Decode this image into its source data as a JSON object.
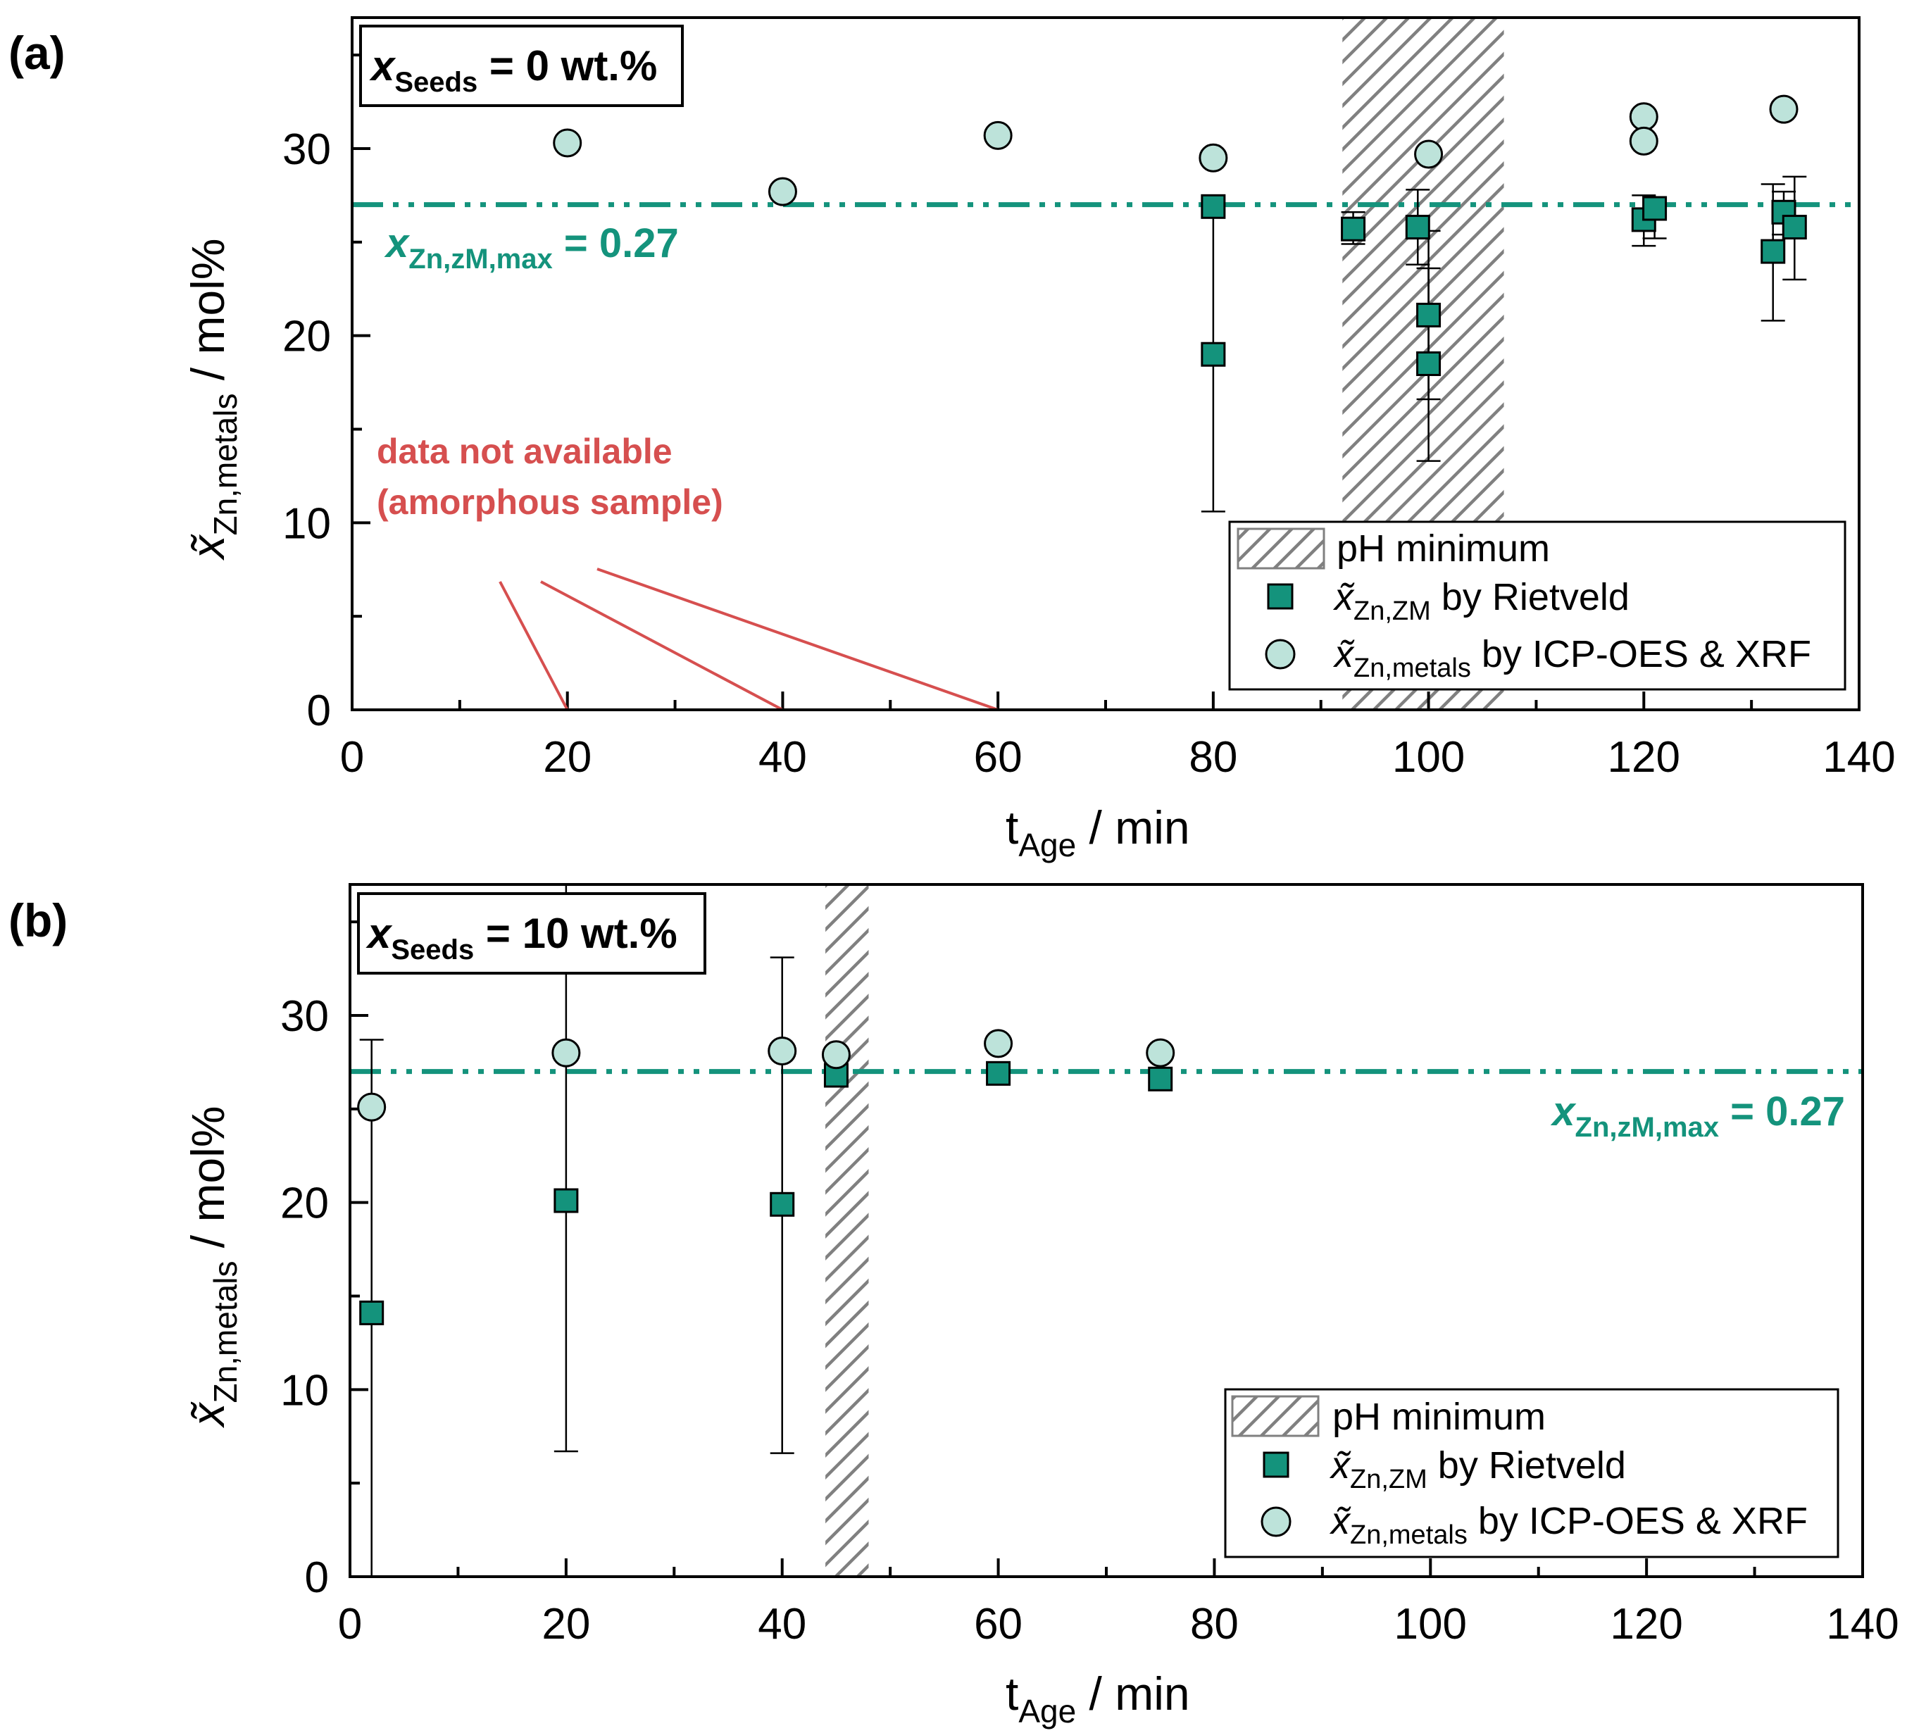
{
  "chart_data": [
    {
      "panel": "(a)",
      "type": "scatter",
      "seeds_label": {
        "var": "x",
        "sub": "Seeds",
        "value": " = 0 wt.%"
      },
      "xlabel": {
        "main": "t",
        "sub": "Age",
        "unit": " / min"
      },
      "ylabel": {
        "var": "x̃",
        "sub": "Zn,metals",
        "unit": " / mol%"
      },
      "xlim": [
        0,
        140
      ],
      "ylim": [
        0,
        37
      ],
      "xticks": [
        0,
        20,
        40,
        60,
        80,
        100,
        120,
        140
      ],
      "yticks": [
        0,
        10,
        20,
        30
      ],
      "xtick_labels": [
        "0",
        "20",
        "40",
        "60",
        "80",
        "100",
        "120",
        "140"
      ],
      "ytick_labels": [
        "0",
        "10",
        "20",
        "30"
      ],
      "highlight_xticks": [
        "20",
        "40",
        "60"
      ],
      "max_line": {
        "y": 27,
        "var": "x",
        "sub": "Zn,zM,max",
        "value": " = 0.27",
        "color": "#14937c"
      },
      "ph_minimum": {
        "x_start": 92,
        "x_end": 107
      },
      "annotation": {
        "line1": "data not available",
        "line2": "(amorphous sample)",
        "color": "#d64f4f",
        "points_to_x": [
          20,
          40,
          60
        ]
      },
      "series": [
        {
          "name": "Rietveld",
          "marker": "square",
          "color": "#14937c",
          "points": [
            {
              "x": 80,
              "y": 26.9,
              "ylo": 10.6,
              "yhi": 26.9
            },
            {
              "x": 80,
              "y": 19.0
            },
            {
              "x": 93,
              "y": 25.7,
              "ylo": 24.9,
              "yhi": 26.6
            },
            {
              "x": 99,
              "y": 25.8,
              "ylo": 23.8,
              "yhi": 27.8
            },
            {
              "x": 100,
              "y": 21.1,
              "ylo": 16.6,
              "yhi": 25.6
            },
            {
              "x": 100,
              "y": 18.5,
              "ylo": 13.3,
              "yhi": 23.6
            },
            {
              "x": 120,
              "y": 26.2,
              "ylo": 24.8,
              "yhi": 27.5
            },
            {
              "x": 121,
              "y": 26.8,
              "ylo": 25.2,
              "yhi": 27.2
            },
            {
              "x": 132,
              "y": 24.5,
              "ylo": 20.8,
              "yhi": 28.1
            },
            {
              "x": 133,
              "y": 26.6,
              "ylo": 25.4,
              "yhi": 27.7
            },
            {
              "x": 134,
              "y": 25.8,
              "ylo": 23.0,
              "yhi": 28.5
            }
          ]
        },
        {
          "name": "ICP-OES & XRF",
          "marker": "circle",
          "color": "#bde3da",
          "points": [
            {
              "x": 20,
              "y": 30.3
            },
            {
              "x": 40,
              "y": 27.7
            },
            {
              "x": 60,
              "y": 30.7
            },
            {
              "x": 80,
              "y": 29.5
            },
            {
              "x": 100,
              "y": 29.7
            },
            {
              "x": 120,
              "y": 31.7
            },
            {
              "x": 120,
              "y": 30.4
            },
            {
              "x": 133,
              "y": 32.1
            }
          ]
        }
      ],
      "legend": {
        "position": "bottom-right",
        "items": [
          {
            "marker": "hatch",
            "label": "pH minimum"
          },
          {
            "marker": "square",
            "var": "x̃",
            "sub": "Zn,ZM",
            "label": " by Rietveld"
          },
          {
            "marker": "circle",
            "var": "x̃",
            "sub": "Zn,metals",
            "label": " by ICP-OES & XRF"
          }
        ]
      }
    },
    {
      "panel": "(b)",
      "type": "scatter",
      "seeds_label": {
        "var": "x",
        "sub": "Seeds",
        "value": " = 10 wt.%"
      },
      "xlabel": {
        "main": "t",
        "sub": "Age",
        "unit": " / min"
      },
      "ylabel": {
        "var": "x̃",
        "sub": "Zn,metals",
        "unit": " / mol%"
      },
      "xlim": [
        0,
        140
      ],
      "ylim": [
        0,
        37
      ],
      "xticks": [
        0,
        20,
        40,
        60,
        80,
        100,
        120,
        140
      ],
      "yticks": [
        0,
        10,
        20,
        30
      ],
      "xtick_labels": [
        "0",
        "20",
        "40",
        "60",
        "80",
        "100",
        "120",
        "140"
      ],
      "ytick_labels": [
        "0",
        "10",
        "20",
        "30"
      ],
      "highlight_xticks": [],
      "max_line": {
        "y": 27,
        "var": "x",
        "sub": "Zn,zM,max",
        "value": " = 0.27",
        "color": "#14937c"
      },
      "ph_minimum": {
        "x_start": 44,
        "x_end": 48
      },
      "series": [
        {
          "name": "Rietveld",
          "marker": "square",
          "color": "#14937c",
          "points": [
            {
              "x": 2,
              "y": 14.1,
              "ylo": 0,
              "yhi": 28.7
            },
            {
              "x": 20,
              "y": 20.1,
              "ylo": 6.7,
              "yhi": 37
            },
            {
              "x": 40,
              "y": 19.9,
              "ylo": 6.6,
              "yhi": 33.1
            },
            {
              "x": 45,
              "y": 26.8
            },
            {
              "x": 60,
              "y": 26.9
            },
            {
              "x": 75,
              "y": 26.6
            }
          ]
        },
        {
          "name": "ICP-OES & XRF",
          "marker": "circle",
          "color": "#bde3da",
          "points": [
            {
              "x": 2,
              "y": 25.1
            },
            {
              "x": 20,
              "y": 28.0
            },
            {
              "x": 40,
              "y": 28.1
            },
            {
              "x": 45,
              "y": 27.9
            },
            {
              "x": 60,
              "y": 28.5
            },
            {
              "x": 75,
              "y": 28.0
            }
          ]
        }
      ],
      "legend": {
        "position": "bottom-right",
        "items": [
          {
            "marker": "hatch",
            "label": "pH minimum"
          },
          {
            "marker": "square",
            "var": "x̃",
            "sub": "Zn,ZM",
            "label": " by Rietveld"
          },
          {
            "marker": "circle",
            "var": "x̃",
            "sub": "Zn,metals",
            "label": " by ICP-OES & XRF"
          }
        ]
      }
    }
  ]
}
